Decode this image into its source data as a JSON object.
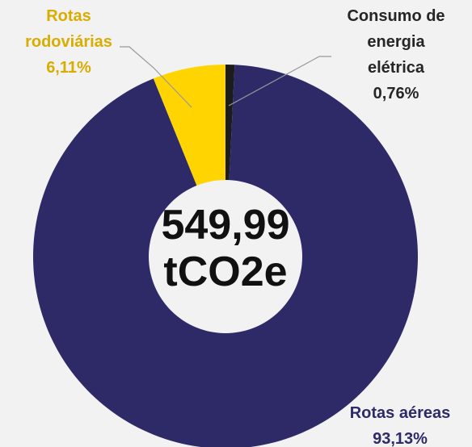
{
  "chart_data": {
    "type": "donut",
    "categories": [
      "Consumo de energia elétrica",
      "Rotas aéreas",
      "Rotas rodoviárias"
    ],
    "values": [
      0.76,
      93.13,
      6.11
    ],
    "value_labels": [
      "0,76%",
      "93,13%",
      "6,11%"
    ],
    "colors": [
      "#1c1c1c",
      "#2d2a67",
      "#ffd400"
    ],
    "center_label": "549,99 tCO2e"
  }
}
